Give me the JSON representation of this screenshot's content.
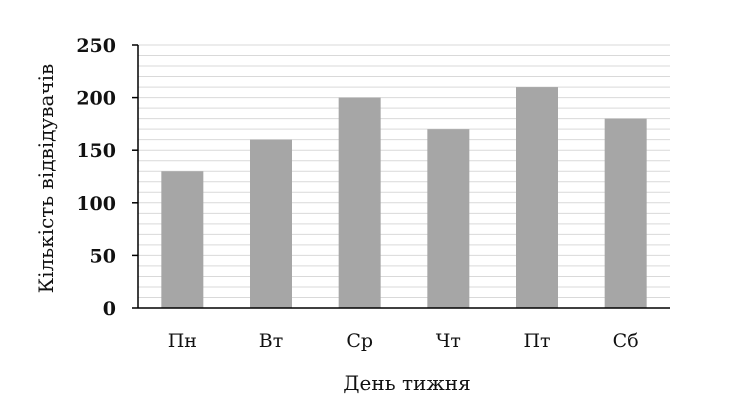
{
  "chart_data": {
    "type": "bar",
    "categories": [
      "Пн",
      "Вт",
      "Ср",
      "Чт",
      "Пт",
      "Сб"
    ],
    "values": [
      130,
      160,
      200,
      170,
      210,
      180
    ],
    "title": "",
    "xlabel": "День тижня",
    "ylabel": "Кількість відвідувачів",
    "ylim": [
      0,
      250
    ],
    "yticks": [
      0,
      50,
      100,
      150,
      200,
      250
    ],
    "grid": true,
    "bar_color": "#a6a6a6",
    "grid_color": "#d9d9d9",
    "axis_color": "#000000"
  }
}
